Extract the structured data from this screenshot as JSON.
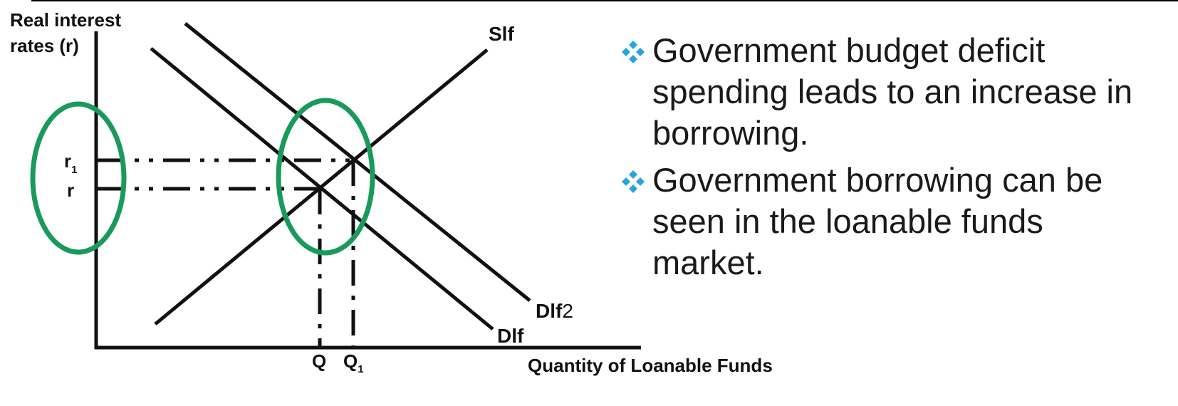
{
  "diagram": {
    "y_axis_label_line1": "Real interest",
    "y_axis_label_line2": "rates (r)",
    "x_axis_label": "Quantity of Loanable Funds",
    "supply_label": "Slf",
    "demand_label": "Dlf",
    "demand2_label_main": "Dlf",
    "demand2_label_suffix": "2",
    "rate_label": "r",
    "rate1_label_main": "r",
    "rate1_label_sub": "1",
    "qty_label": "Q",
    "qty1_label_main": "Q",
    "qty1_label_sub": "1",
    "highlight_color": "#1a9a5a",
    "line_color": "#111111"
  },
  "bullets": [
    {
      "text": "Government budget deficit spending leads to an increase in borrowing."
    },
    {
      "text": "Government borrowing can be seen in the loanable funds market."
    }
  ],
  "bullet_icon": "four-diamond-icon",
  "bullet_icon_color": "#29a3e0"
}
